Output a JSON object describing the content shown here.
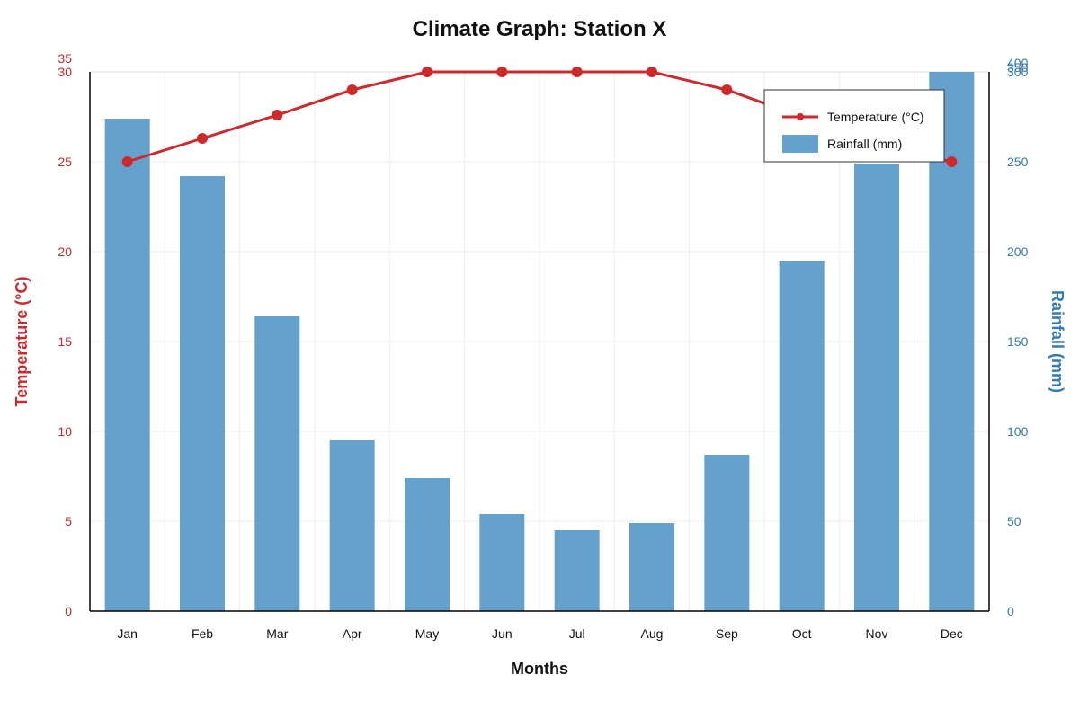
{
  "chart_data": {
    "type": "bar",
    "title": "Climate Graph: Station X",
    "xlabel": "Months",
    "categories": [
      "Jan",
      "Feb",
      "Mar",
      "Apr",
      "May",
      "Jun",
      "Jul",
      "Aug",
      "Sep",
      "Oct",
      "Nov",
      "Dec"
    ],
    "series": [
      {
        "name": "Rainfall (mm)",
        "type": "bar",
        "axis": "right",
        "values": [
          274,
          242,
          164,
          95,
          74,
          54,
          45,
          49,
          87,
          195,
          249,
          300
        ],
        "color": "#4a90c4"
      },
      {
        "name": "Temperature (°C)",
        "type": "line",
        "axis": "left",
        "values": [
          25,
          26.3,
          27.6,
          29,
          30,
          30,
          30,
          30,
          29,
          27.5,
          26,
          25
        ],
        "color": "#d0292b"
      }
    ],
    "y_left": {
      "label": "Temperature (°C)",
      "ticks": [
        0,
        5,
        10,
        15,
        20,
        25,
        30,
        35
      ],
      "color": "#d0292b"
    },
    "y_right": {
      "label": "Rainfall (mm)",
      "ticks": [
        0,
        50,
        100,
        150,
        200,
        250,
        300,
        350,
        400
      ],
      "color": "#2e7bb5"
    },
    "legend": {
      "placement": "top-right",
      "items": [
        "Temperature (°C)",
        "Rainfall (mm)"
      ]
    },
    "grid": true
  }
}
